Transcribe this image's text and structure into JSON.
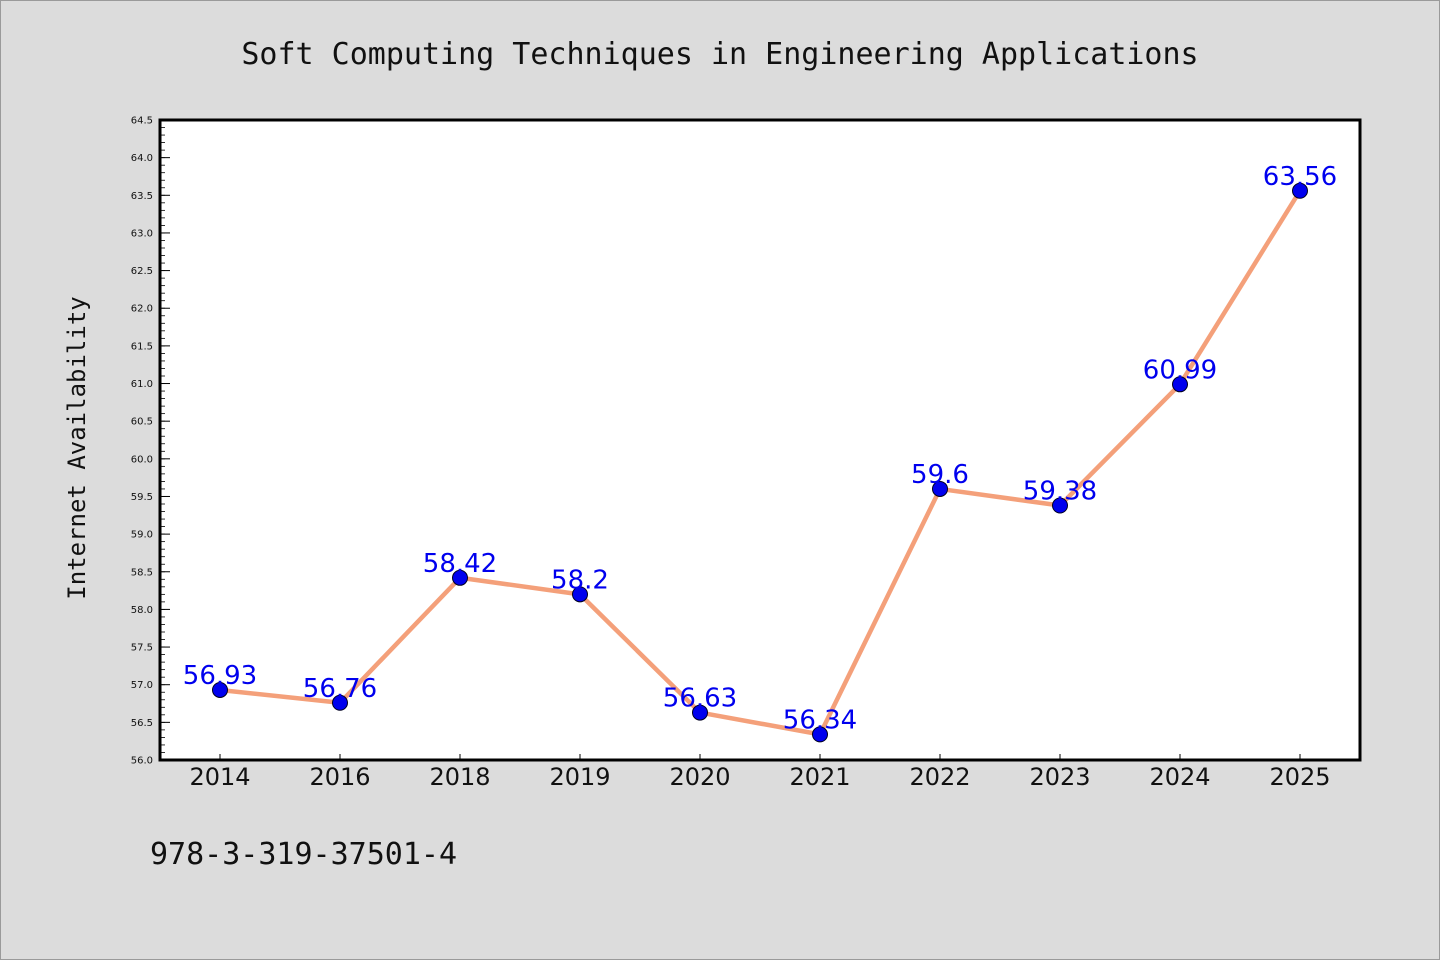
{
  "chart_data": {
    "type": "line",
    "title": "Soft Computing Techniques in Engineering Applications",
    "xlabel": "",
    "ylabel": "Internet Availability",
    "categories": [
      "2014",
      "2016",
      "2018",
      "2019",
      "2020",
      "2021",
      "2022",
      "2023",
      "2024",
      "2025"
    ],
    "series": [
      {
        "values": [
          56.93,
          56.76,
          58.42,
          58.2,
          56.63,
          56.34,
          59.6,
          59.38,
          60.99,
          63.56
        ],
        "labels": [
          "56.93",
          "56.76",
          "58.42",
          "58.2",
          "56.63",
          "56.34",
          "59.6",
          "59.38",
          "60.99",
          "63.56"
        ],
        "line_color": "#f4a07a",
        "marker_color": "#0000ee"
      }
    ],
    "ylim": [
      56.0,
      64.5
    ],
    "yticks": [
      "56.0",
      "56.5",
      "57.0",
      "57.5",
      "58.0",
      "58.5",
      "59.0",
      "59.5",
      "60.0",
      "60.5",
      "61.0",
      "61.5",
      "62.0",
      "62.5",
      "63.0",
      "63.5",
      "64.0",
      "64.5"
    ],
    "grid": false,
    "legend": "none"
  },
  "footnote": "978-3-319-37501-4",
  "colors": {
    "background": "#dcdcdc",
    "plot_background": "#ffffff",
    "axis": "#000000",
    "data_label": "#0000ee"
  }
}
